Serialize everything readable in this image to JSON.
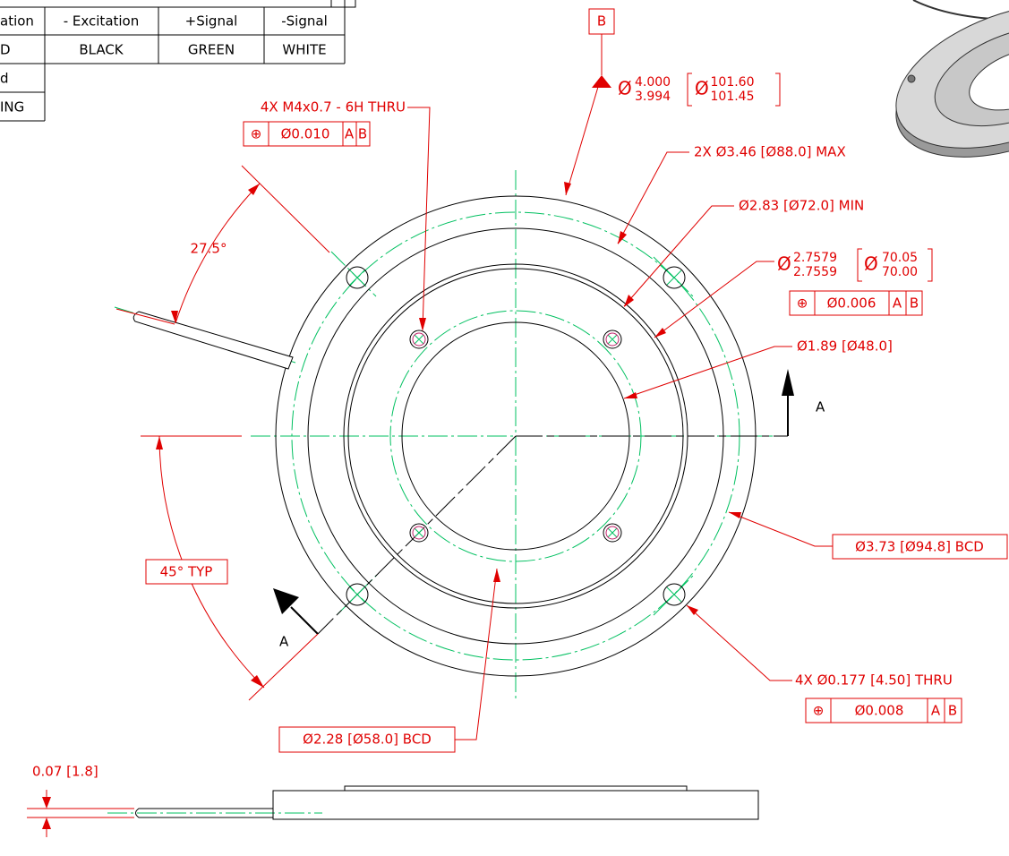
{
  "table": {
    "rows": [
      [
        "ation",
        "- Excitation",
        "+Signal",
        "-Signal"
      ],
      [
        "D",
        "BLACK",
        "GREEN",
        "WHITE"
      ],
      [
        "d"
      ],
      [
        "ING"
      ]
    ]
  },
  "datum_b": "B",
  "outer_diameter": {
    "symbol": "Ø",
    "upper": "4.000",
    "lower": "3.994",
    "metric_symbol": "Ø",
    "metric_upper": "101.60",
    "metric_lower": "101.45"
  },
  "tapped_holes": {
    "label": "4X M4x0.7 - 6H THRU",
    "tolerance": {
      "symbol": "⊕",
      "value": "Ø0.010",
      "datums": [
        "A",
        "B"
      ]
    }
  },
  "relief_diameter": "2X Ø3.46 [Ø88.0] MAX",
  "step_diameter": "Ø2.83 [Ø72.0] MIN",
  "pilot_diameter": {
    "symbol": "Ø",
    "upper": "2.7579",
    "lower": "2.7559",
    "metric_symbol": "Ø",
    "metric_upper": "70.05",
    "metric_lower": "70.00",
    "tolerance": {
      "symbol": "⊕",
      "value": "Ø0.006",
      "datums": [
        "A",
        "B"
      ]
    }
  },
  "bore_diameter": "Ø1.89 [Ø48.0]",
  "section_labels": [
    "A",
    "A"
  ],
  "cable_angle": "27.5°",
  "hole_angle": "45° TYP",
  "outer_bcd": "Ø3.73 [Ø94.8] BCD",
  "through_holes": {
    "label": "4X Ø0.177 [4.50] THRU",
    "tolerance": {
      "symbol": "⊕",
      "value": "Ø0.008",
      "datums": [
        "A",
        "B"
      ]
    }
  },
  "inner_bcd": "Ø2.28 [Ø58.0] BCD",
  "cable_thickness": "0.07 [1.8]"
}
